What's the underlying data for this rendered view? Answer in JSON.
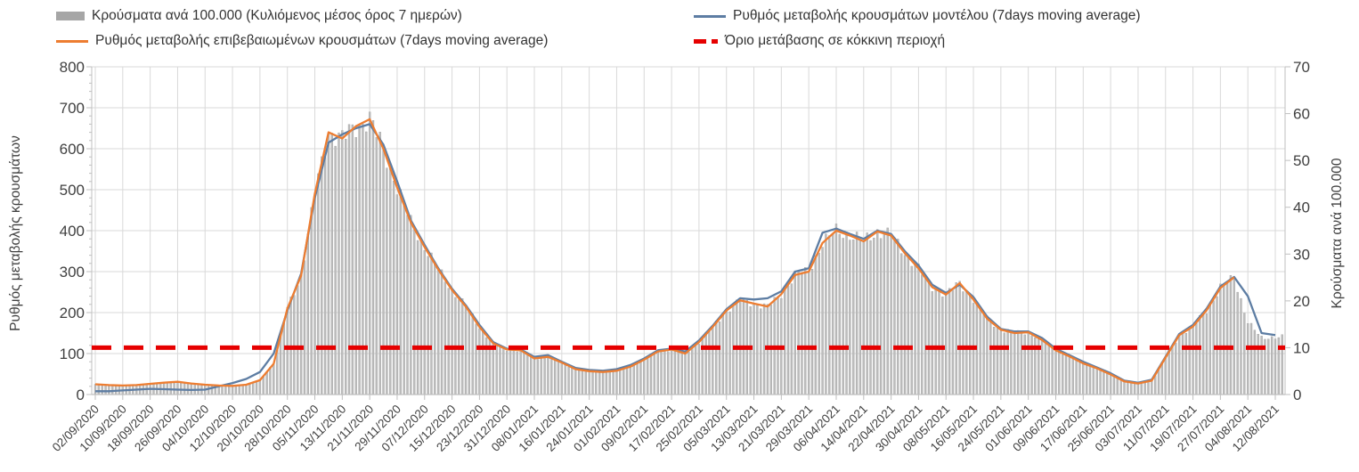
{
  "legend": {
    "items": [
      {
        "label": "Κρούσματα ανά 100.000 (Κυλιόμενος μέσος όρος 7 ημερών)",
        "marker": "gray-bar"
      },
      {
        "label": "Ρυθμός μεταβολής κρουσμάτων μοντέλου (7days moving average)",
        "marker": "blue-line"
      },
      {
        "label": "Ρυθμός μεταβολής επιβεβαιωμένων κρουσμάτων (7days moving average)",
        "marker": "orange-line"
      },
      {
        "label": "Όριο μετάβασης σε κόκκινη περιοχή",
        "marker": "red-dash"
      }
    ]
  },
  "chart_data": {
    "type": "combo-bar-line",
    "title": "",
    "y_axis_left": {
      "title": "Ρυθμός μεταβολής κρουσμάτων",
      "min": 0,
      "max": 800,
      "step": 100
    },
    "y_axis_right": {
      "title": "Κρούσματα ανά 100.000",
      "min": 0,
      "max": 70,
      "step": 10
    },
    "grid": true,
    "legend_position": "top",
    "colors": {
      "bars": "#bdbdbd",
      "bar_edge": "#9a9a9a",
      "model_line": "#5d7da3",
      "confirmed_line": "#ed7d31",
      "threshold": "#e60000",
      "gridline": "#d9d9d9",
      "axis": "#bfbfbf",
      "text": "#404040"
    },
    "x": [
      "02/09/2020",
      "06/09/2020",
      "10/09/2020",
      "14/09/2020",
      "18/09/2020",
      "22/09/2020",
      "26/09/2020",
      "30/09/2020",
      "04/10/2020",
      "08/10/2020",
      "12/10/2020",
      "16/10/2020",
      "20/10/2020",
      "24/10/2020",
      "28/10/2020",
      "01/11/2020",
      "05/11/2020",
      "09/11/2020",
      "13/11/2020",
      "17/11/2020",
      "21/11/2020",
      "25/11/2020",
      "29/11/2020",
      "03/12/2020",
      "07/12/2020",
      "11/12/2020",
      "15/12/2020",
      "19/12/2020",
      "23/12/2020",
      "27/12/2020",
      "31/12/2020",
      "04/01/2021",
      "08/01/2021",
      "12/01/2021",
      "16/01/2021",
      "20/01/2021",
      "24/01/2021",
      "28/01/2021",
      "01/02/2021",
      "05/02/2021",
      "09/02/2021",
      "13/02/2021",
      "17/02/2021",
      "21/02/2021",
      "25/02/2021",
      "01/03/2021",
      "05/03/2021",
      "09/03/2021",
      "13/03/2021",
      "17/03/2021",
      "21/03/2021",
      "25/03/2021",
      "29/03/2021",
      "02/04/2021",
      "06/04/2021",
      "10/04/2021",
      "14/04/2021",
      "18/04/2021",
      "22/04/2021",
      "26/04/2021",
      "30/04/2021",
      "04/05/2021",
      "08/05/2021",
      "12/05/2021",
      "16/05/2021",
      "20/05/2021",
      "24/05/2021",
      "28/05/2021",
      "01/06/2021",
      "05/06/2021",
      "09/06/2021",
      "13/06/2021",
      "17/06/2021",
      "21/06/2021",
      "25/06/2021",
      "29/06/2021",
      "03/07/2021",
      "07/07/2021",
      "11/07/2021",
      "15/07/2021",
      "19/07/2021",
      "23/07/2021",
      "27/07/2021",
      "31/07/2021",
      "04/08/2021",
      "08/08/2021",
      "12/08/2021"
    ],
    "x_tick_every": 2,
    "series": [
      {
        "name": "Κρούσματα ανά 100.000 (Κυλιόμενος μέσος όρος 7 ημερών)",
        "type": "bar",
        "axis": "right",
        "values": [
          2.2,
          2.0,
          1.9,
          2.0,
          2.3,
          2.5,
          2.7,
          2.4,
          2.1,
          1.9,
          1.8,
          2.1,
          3.1,
          6.6,
          18.4,
          25.4,
          42.9,
          56.0,
          54.7,
          57.3,
          58.8,
          52.5,
          44.2,
          36.8,
          31.5,
          26.7,
          22.3,
          18.8,
          14.4,
          10.9,
          9.6,
          9.5,
          7.7,
          8.1,
          6.8,
          5.4,
          5.0,
          4.8,
          5.1,
          6.0,
          7.4,
          9.2,
          9.6,
          8.8,
          11.2,
          14.4,
          17.9,
          20.1,
          19.4,
          18.8,
          21.4,
          25.6,
          26.3,
          32.4,
          35.0,
          34.0,
          32.7,
          34.8,
          34.0,
          30.2,
          26.9,
          22.9,
          21.4,
          23.8,
          20.3,
          16.2,
          13.8,
          13.1,
          13.3,
          11.6,
          9.5,
          8.1,
          6.7,
          5.6,
          4.3,
          2.8,
          2.4,
          3.0,
          7.9,
          12.7,
          14.5,
          18.0,
          22.8,
          25.0,
          15.5,
          12.0,
          12.3
        ]
      },
      {
        "name": "Ρυθμός μεταβολής κρουσμάτων μοντέλου (7days moving average)",
        "type": "line",
        "axis": "left",
        "values": [
          8,
          8,
          10,
          12,
          14,
          13,
          12,
          11,
          12,
          20,
          28,
          38,
          55,
          100,
          205,
          295,
          480,
          615,
          635,
          650,
          660,
          610,
          520,
          425,
          365,
          308,
          258,
          218,
          170,
          128,
          112,
          110,
          92,
          96,
          80,
          65,
          60,
          58,
          62,
          72,
          88,
          108,
          112,
          105,
          132,
          168,
          208,
          235,
          232,
          235,
          252,
          300,
          308,
          395,
          405,
          392,
          380,
          400,
          392,
          350,
          315,
          268,
          248,
          268,
          238,
          190,
          160,
          154,
          154,
          138,
          112,
          96,
          80,
          66,
          52,
          34,
          29,
          36,
          92,
          148,
          170,
          210,
          264,
          287,
          240,
          150,
          145
        ]
      },
      {
        "name": "Ρυθμός μεταβολής επιβεβαιωμένων κρουσμάτων (7days moving average)",
        "type": "line",
        "axis": "left",
        "values": [
          25,
          23,
          22,
          23,
          26,
          29,
          31,
          27,
          24,
          22,
          21,
          24,
          35,
          75,
          210,
          290,
          490,
          640,
          625,
          655,
          672,
          600,
          505,
          420,
          360,
          305,
          255,
          215,
          165,
          125,
          110,
          108,
          88,
          92,
          78,
          62,
          57,
          55,
          58,
          68,
          85,
          105,
          110,
          100,
          128,
          165,
          205,
          230,
          222,
          215,
          245,
          292,
          300,
          370,
          400,
          388,
          374,
          398,
          388,
          345,
          308,
          262,
          244,
          272,
          232,
          185,
          158,
          150,
          152,
          133,
          108,
          93,
          76,
          64,
          49,
          32,
          27,
          34,
          90,
          145,
          166,
          206,
          260,
          286,
          null,
          null,
          null
        ]
      },
      {
        "name": "Όριο μετάβασης σε κόκκινη περιοχή",
        "type": "threshold",
        "axis": "right",
        "value": 10
      }
    ]
  }
}
